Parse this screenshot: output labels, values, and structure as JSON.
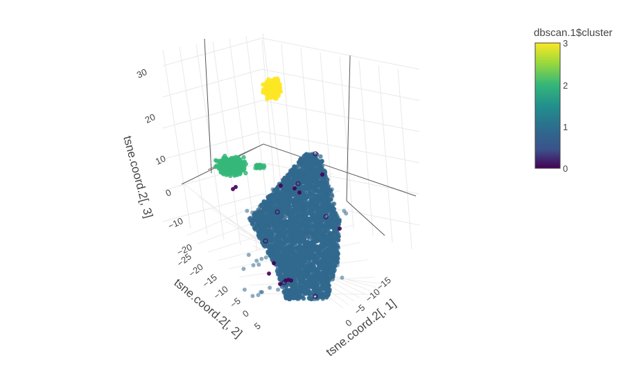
{
  "chart_data": {
    "type": "scatter",
    "dimensions": 3,
    "axes": {
      "x": {
        "title": "tsne.coord.2[, 1]",
        "ticks": [
          "−15",
          "−10",
          "−5",
          "0"
        ]
      },
      "y": {
        "title": "tsne.coord.2[, 2]",
        "ticks": [
          "−25",
          "−20",
          "−15",
          "−10",
          "−5",
          "0",
          "5"
        ]
      },
      "z": {
        "title": "tsne.coord.2[, 3]",
        "ticks": [
          "−20",
          "−10",
          "0",
          "10",
          "20",
          "30"
        ]
      }
    },
    "colorbar": {
      "title": "dbscan.1$cluster",
      "ticks": [
        "0",
        "1",
        "2",
        "3"
      ],
      "range": [
        0,
        3
      ],
      "colorscale": [
        "#440154",
        "#3b528b",
        "#21908c",
        "#5dc863",
        "#fde725"
      ]
    },
    "clusters": [
      {
        "cluster": 0,
        "color": "#440154",
        "description_points": "sparse noise points"
      },
      {
        "cluster": 1,
        "color": "#31688e",
        "description_points": "large central cluster"
      },
      {
        "cluster": 2,
        "color": "#35b779",
        "description_points": "left cluster"
      },
      {
        "cluster": 3,
        "color": "#fde725",
        "description_points": "top cluster"
      }
    ],
    "grid": true,
    "legend": "right"
  }
}
